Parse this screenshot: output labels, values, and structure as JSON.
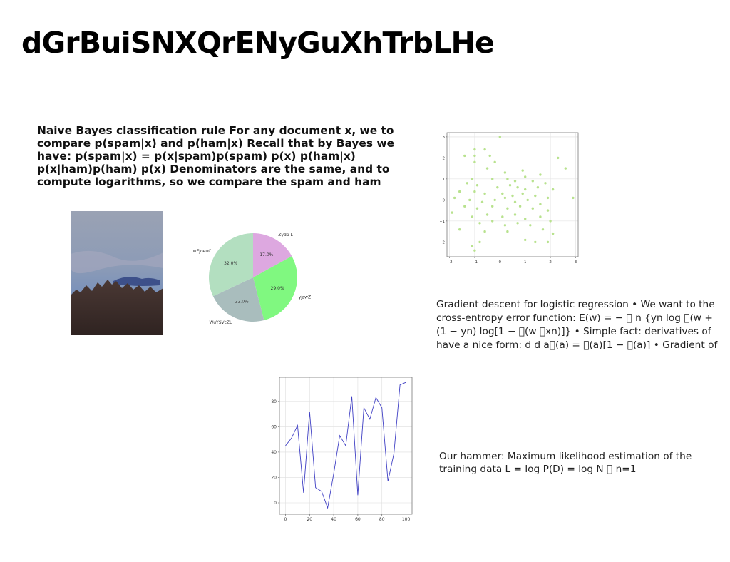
{
  "slide": {
    "title": "dGrBuiSNXQrENyGuXhTrbLHe",
    "naive_bayes_text": "Naive Bayes classification rule For any document x, we to compare p(spam|x) and p(ham|x) Recall that by Bayes we have: p(spam|x) = p(x|spam)p(spam) p(x) p(ham|x) p(x|ham)p(ham) p(x) Denominators are the same, and to compute logarithms, so we compare the spam and ham",
    "gradient_text": "Gradient descent for logistic regression • We want to the cross-entropy error function: E(w) = − ￿ n {yn log ￿(w + (1 − yn) log[1 − ￿(w ￿xn)]} • Simple fact: derivatives of have a nice form: d d a￿(a) = ￿(a)[1 − ￿(a)] • Gradient of",
    "hammer_text": "Our hammer: Maximum likelihood estimation of the training data L = log P(D) = log N ￿ n=1"
  },
  "photo": {
    "sky_top": "#9aa2b4",
    "sky_bottom": "#5c82c2",
    "mountain": "#3a2c2a"
  },
  "chart_data": [
    {
      "type": "pie",
      "labels": [
        "Zydp L",
        "yjzwZ",
        "WuYSVcZL",
        "wEJoeuC"
      ],
      "values": [
        17.0,
        29.0,
        22.0,
        32.0
      ],
      "value_labels": [
        "17.0%",
        "29.0%",
        "22.0%",
        "32.0%"
      ],
      "colors": [
        "#dda8e0",
        "#80f880",
        "#a9bdbd",
        "#b3dfc0"
      ],
      "start_angle": 90,
      "direction": "clockwise"
    },
    {
      "type": "scatter",
      "color": "#b8e28e",
      "xlim": [
        -2.1,
        3.1
      ],
      "ylim": [
        -2.7,
        3.2
      ],
      "xticks": [
        -2,
        -1,
        0,
        1,
        2,
        3
      ],
      "yticks": [
        -2,
        -1,
        0,
        1,
        2,
        3
      ],
      "xtick_labels": [
        "−2",
        "−1",
        "0",
        "1",
        "2",
        "3"
      ],
      "ytick_labels": [
        "−2",
        "−1",
        "0",
        "1",
        "2",
        "3"
      ],
      "grid": true,
      "points": [
        [
          0,
          3.0
        ],
        [
          -1.0,
          2.4
        ],
        [
          -0.6,
          2.4
        ],
        [
          -1.0,
          2.1
        ],
        [
          -1.0,
          1.8
        ],
        [
          -0.4,
          2.1
        ],
        [
          -0.2,
          1.8
        ],
        [
          2.3,
          2.0
        ],
        [
          2.6,
          1.5
        ],
        [
          -1.4,
          2.1
        ],
        [
          -0.5,
          1.5
        ],
        [
          0.2,
          1.3
        ],
        [
          0.9,
          1.4
        ],
        [
          1.0,
          1.1
        ],
        [
          1.6,
          1.2
        ],
        [
          -1.1,
          1.0
        ],
        [
          -0.3,
          1.0
        ],
        [
          0.3,
          1.0
        ],
        [
          0.6,
          0.9
        ],
        [
          1.3,
          0.9
        ],
        [
          1.8,
          0.8
        ],
        [
          -1.3,
          0.8
        ],
        [
          -0.9,
          0.7
        ],
        [
          -0.1,
          0.6
        ],
        [
          0.4,
          0.7
        ],
        [
          0.7,
          0.6
        ],
        [
          1.0,
          0.5
        ],
        [
          1.5,
          0.6
        ],
        [
          2.1,
          0.5
        ],
        [
          -1.6,
          0.4
        ],
        [
          -1.0,
          0.4
        ],
        [
          -0.6,
          0.3
        ],
        [
          0.1,
          0.3
        ],
        [
          0.5,
          0.2
        ],
        [
          0.9,
          0.3
        ],
        [
          1.4,
          0.2
        ],
        [
          1.9,
          0.1
        ],
        [
          2.9,
          0.1
        ],
        [
          -1.8,
          0.1
        ],
        [
          -1.2,
          0.0
        ],
        [
          -0.7,
          -0.1
        ],
        [
          -0.2,
          0.0
        ],
        [
          0.2,
          0.1
        ],
        [
          0.6,
          -0.1
        ],
        [
          1.1,
          0.0
        ],
        [
          1.6,
          -0.2
        ],
        [
          -1.4,
          -0.3
        ],
        [
          -0.9,
          -0.4
        ],
        [
          -0.3,
          -0.3
        ],
        [
          0.3,
          -0.4
        ],
        [
          0.8,
          -0.3
        ],
        [
          1.3,
          -0.4
        ],
        [
          1.9,
          -0.5
        ],
        [
          -1.9,
          -0.6
        ],
        [
          -1.1,
          -0.8
        ],
        [
          -0.5,
          -0.7
        ],
        [
          0.1,
          -0.8
        ],
        [
          0.6,
          -0.7
        ],
        [
          1.0,
          -0.9
        ],
        [
          1.6,
          -0.8
        ],
        [
          2.0,
          -1.0
        ],
        [
          -0.8,
          -1.1
        ],
        [
          -0.3,
          -1.0
        ],
        [
          0.2,
          -1.2
        ],
        [
          0.7,
          -1.1
        ],
        [
          1.2,
          -1.2
        ],
        [
          -1.6,
          -1.4
        ],
        [
          -0.6,
          -1.5
        ],
        [
          0.3,
          -1.5
        ],
        [
          1.7,
          -1.4
        ],
        [
          2.1,
          -1.6
        ],
        [
          1.0,
          -1.9
        ],
        [
          1.4,
          -2.0
        ],
        [
          1.9,
          -2.0
        ],
        [
          -1.0,
          -2.4
        ],
        [
          -0.8,
          -2.0
        ],
        [
          -1.1,
          -2.2
        ]
      ]
    },
    {
      "type": "line",
      "color": "#3f3fc4",
      "xlim": [
        -5,
        105
      ],
      "ylim": [
        -9,
        99
      ],
      "xticks": [
        0,
        20,
        40,
        60,
        80,
        100
      ],
      "yticks": [
        0,
        20,
        40,
        60,
        80
      ],
      "xtick_labels": [
        "0",
        "20",
        "40",
        "60",
        "80",
        "100"
      ],
      "ytick_labels": [
        "0",
        "20",
        "40",
        "60",
        "80"
      ],
      "grid": true,
      "x": [
        0,
        5,
        10,
        15,
        20,
        25,
        30,
        35,
        40,
        45,
        50,
        55,
        60,
        65,
        70,
        75,
        80,
        85,
        90,
        95,
        100
      ],
      "y": [
        45,
        51,
        61,
        8,
        72,
        12,
        9,
        -4,
        23,
        53,
        45,
        84,
        6,
        75,
        66,
        83,
        75,
        17,
        39,
        93,
        95
      ]
    }
  ]
}
